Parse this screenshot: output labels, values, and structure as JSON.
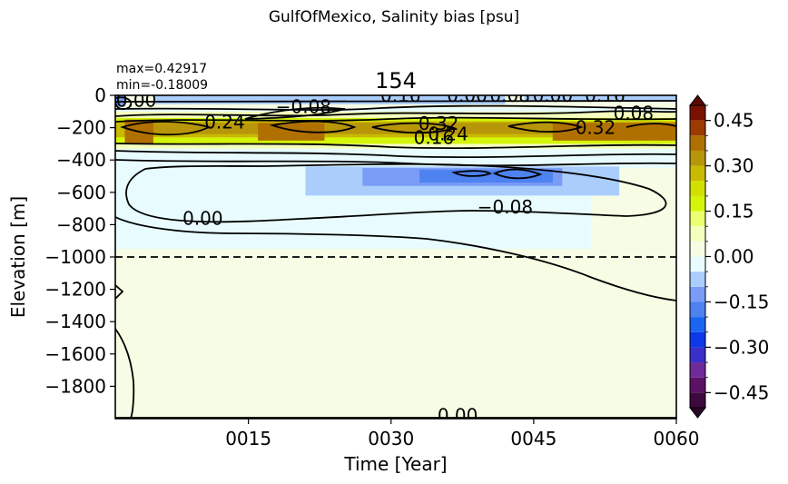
{
  "figure": {
    "suptitle": "GulfOfMexico, Salinity bias [psu]",
    "stats_max": "max=0.42917",
    "stats_min": "min=-0.18009"
  },
  "chart_data": {
    "type": "heatmap",
    "title": "154",
    "xlabel": "Time [Year]",
    "ylabel": "Elevation [m]",
    "xlim": [
      1,
      60
    ],
    "ylim": [
      -2000,
      0
    ],
    "x_ticks": [
      {
        "value": 15,
        "label": "0015"
      },
      {
        "value": 30,
        "label": "0030"
      },
      {
        "value": 45,
        "label": "0045"
      },
      {
        "value": 60,
        "label": "0060"
      }
    ],
    "y_ticks": [
      {
        "value": 0,
        "label": "0"
      },
      {
        "value": -200,
        "label": "−200"
      },
      {
        "value": -400,
        "label": "−400"
      },
      {
        "value": -600,
        "label": "−600"
      },
      {
        "value": -800,
        "label": "−800"
      },
      {
        "value": -1000,
        "label": "−1000"
      },
      {
        "value": -1200,
        "label": "−1200"
      },
      {
        "value": -1400,
        "label": "−1400"
      },
      {
        "value": -1600,
        "label": "−1600"
      },
      {
        "value": -1800,
        "label": "−1800"
      }
    ],
    "reference_line_depth": -1000,
    "colorbar": {
      "min": -0.5,
      "max": 0.5,
      "extend": "both",
      "ticks": [
        {
          "value": 0.45,
          "label": "0.45"
        },
        {
          "value": 0.3,
          "label": "0.30"
        },
        {
          "value": 0.15,
          "label": "0.15"
        },
        {
          "value": 0.0,
          "label": "0.00"
        },
        {
          "value": -0.15,
          "label": "−0.15"
        },
        {
          "value": -0.3,
          "label": "−0.30"
        },
        {
          "value": -0.45,
          "label": "−0.45"
        }
      ],
      "levels": [
        {
          "lo": -0.5,
          "hi": -0.45,
          "color": "#3d0a3e"
        },
        {
          "lo": -0.45,
          "hi": -0.4,
          "color": "#5b1164"
        },
        {
          "lo": -0.4,
          "hi": -0.35,
          "color": "#6f2a9a"
        },
        {
          "lo": -0.35,
          "hi": -0.3,
          "color": "#3a2fc8"
        },
        {
          "lo": -0.3,
          "hi": -0.25,
          "color": "#0b38e8"
        },
        {
          "lo": -0.25,
          "hi": -0.2,
          "color": "#1a66f2"
        },
        {
          "lo": -0.2,
          "hi": -0.15,
          "color": "#4d82f0"
        },
        {
          "lo": -0.15,
          "hi": -0.1,
          "color": "#7a9cf7"
        },
        {
          "lo": -0.1,
          "hi": -0.05,
          "color": "#aacdfc"
        },
        {
          "lo": -0.05,
          "hi": 0.0,
          "color": "#e8fcff"
        },
        {
          "lo": 0.0,
          "hi": 0.05,
          "color": "#f6fde4"
        },
        {
          "lo": 0.05,
          "hi": 0.1,
          "color": "#f4ffbe"
        },
        {
          "lo": 0.1,
          "hi": 0.15,
          "color": "#ecff70"
        },
        {
          "lo": 0.15,
          "hi": 0.2,
          "color": "#d4f40a"
        },
        {
          "lo": 0.2,
          "hi": 0.25,
          "color": "#d2e000"
        },
        {
          "lo": 0.25,
          "hi": 0.3,
          "color": "#c9b900"
        },
        {
          "lo": 0.3,
          "hi": 0.35,
          "color": "#b8960a"
        },
        {
          "lo": 0.35,
          "hi": 0.4,
          "color": "#b07000"
        },
        {
          "lo": 0.4,
          "hi": 0.45,
          "color": "#9b3b00"
        },
        {
          "lo": 0.45,
          "hi": 0.5,
          "color": "#7a1100"
        }
      ],
      "over_color": "#5a0a00",
      "under_color": "#2a0628"
    },
    "regions": [
      {
        "x": [
          1,
          60
        ],
        "y": [
          -2000,
          0
        ],
        "value": 0.02
      },
      {
        "x": [
          1,
          60
        ],
        "y": [
          -450,
          -80
        ],
        "value": -0.02
      },
      {
        "x": [
          1,
          51
        ],
        "y": [
          -950,
          -450
        ],
        "value": -0.03
      },
      {
        "x": [
          1,
          60
        ],
        "y": [
          -330,
          -100
        ],
        "value": 0.08
      },
      {
        "x": [
          1,
          60
        ],
        "y": [
          -300,
          -140
        ],
        "value": 0.17
      },
      {
        "x": [
          1,
          60
        ],
        "y": [
          -260,
          -160
        ],
        "value": 0.28
      },
      {
        "x": [
          3,
          58
        ],
        "y": [
          -240,
          -170
        ],
        "value": 0.34
      },
      {
        "x": [
          2,
          5
        ],
        "y": [
          -300,
          -150
        ],
        "value": 0.38
      },
      {
        "x": [
          16,
          23
        ],
        "y": [
          -280,
          -170
        ],
        "value": 0.39
      },
      {
        "x": [
          47,
          60
        ],
        "y": [
          -280,
          -170
        ],
        "value": 0.38
      },
      {
        "x": [
          21,
          54
        ],
        "y": [
          -620,
          -440
        ],
        "value": -0.08
      },
      {
        "x": [
          27,
          48
        ],
        "y": [
          -560,
          -450
        ],
        "value": -0.12
      },
      {
        "x": [
          33,
          47
        ],
        "y": [
          -540,
          -460
        ],
        "value": -0.17
      },
      {
        "x": [
          1,
          2
        ],
        "y": [
          -70,
          0
        ],
        "value": -0.12
      },
      {
        "x": [
          5,
          42
        ],
        "y": [
          -55,
          0
        ],
        "value": -0.08
      },
      {
        "x": [
          44,
          60
        ],
        "y": [
          -40,
          0
        ],
        "value": -0.07
      }
    ],
    "contour_labels": [
      {
        "x": 3.2,
        "y": -30,
        "text": "0.00"
      },
      {
        "x": 12.5,
        "y": -165,
        "text": "0.24"
      },
      {
        "x": 20.8,
        "y": -70,
        "text": "−0.08"
      },
      {
        "x": 31,
        "y": 0,
        "text": "0.16"
      },
      {
        "x": 35,
        "y": -175,
        "text": "0.32"
      },
      {
        "x": 34.5,
        "y": -260,
        "text": "0.16"
      },
      {
        "x": 36,
        "y": -240,
        "text": "0.24"
      },
      {
        "x": 38,
        "y": 0,
        "text": "0.00"
      },
      {
        "x": 42.5,
        "y": 0,
        "text": "0.08"
      },
      {
        "x": 47,
        "y": 0,
        "text": "0.00"
      },
      {
        "x": 52.5,
        "y": 0,
        "text": "0.16"
      },
      {
        "x": 55.5,
        "y": -110,
        "text": "0.08"
      },
      {
        "x": 51.5,
        "y": -200,
        "text": "0.32"
      },
      {
        "x": 10.2,
        "y": -760,
        "text": "0.00"
      },
      {
        "x": 42,
        "y": -690,
        "text": "−0.08"
      },
      {
        "x": 37,
        "y": -1980,
        "text": "0.00"
      }
    ]
  }
}
